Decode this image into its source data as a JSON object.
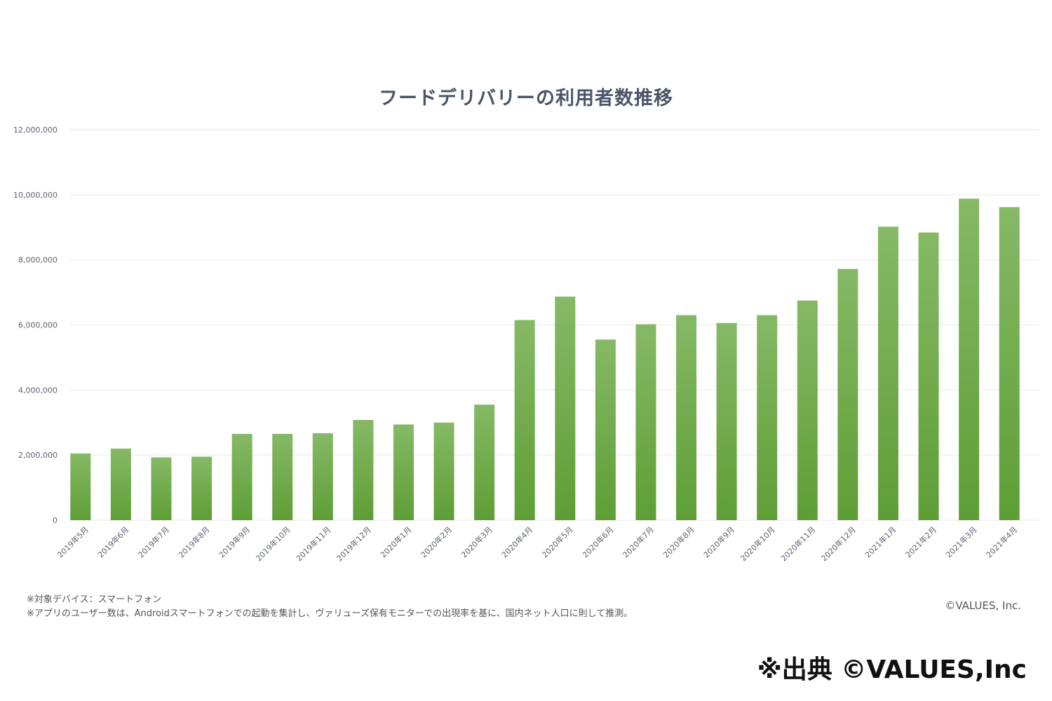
{
  "chart_data": {
    "type": "bar",
    "title": "フードデリバリーの利用者数推移",
    "xlabel": "",
    "ylabel": "",
    "ylim": [
      0,
      12000000
    ],
    "yticks": [
      "0",
      "2,000,000",
      "4,000,000",
      "6,000,000",
      "8,000,000",
      "10,000,000",
      "12,000,000"
    ],
    "ytick_values": [
      0,
      2000000,
      4000000,
      6000000,
      8000000,
      10000000,
      12000000
    ],
    "categories": [
      "2019年5月",
      "2019年6月",
      "2019年7月",
      "2019年8月",
      "2019年9月",
      "2019年10月",
      "2019年11月",
      "2019年12月",
      "2020年1月",
      "2020年2月",
      "2020年3月",
      "2020年4月",
      "2020年5月",
      "2020年6月",
      "2020年7月",
      "2020年8月",
      "2020年9月",
      "2020年10月",
      "2020年11月",
      "2020年12月",
      "2021年1月",
      "2021年2月",
      "2021年3月",
      "2021年4月"
    ],
    "values": [
      2050000,
      2200000,
      1930000,
      1950000,
      2650000,
      2650000,
      2670000,
      3080000,
      2940000,
      3000000,
      3550000,
      6150000,
      6870000,
      5550000,
      6020000,
      6300000,
      6060000,
      6300000,
      6750000,
      7720000,
      9020000,
      8840000,
      9880000,
      9620000
    ],
    "grid": true,
    "legend": "none"
  },
  "notes": {
    "line1": "※対象デバイス：スマートフォン",
    "line2": "※アプリのユーザー数は、Androidスマートフォンでの起動を集計し、ヴァリューズ保有モニターでの出現率を基に、国内ネット人口に則して推測。"
  },
  "copyright": "©VALUES, Inc.",
  "source_credit": "※出典 ©VALUES,Inc",
  "colors": {
    "bar_top": "#86b966",
    "bar_bottom": "#5e9e35",
    "title": "#4a5568"
  }
}
